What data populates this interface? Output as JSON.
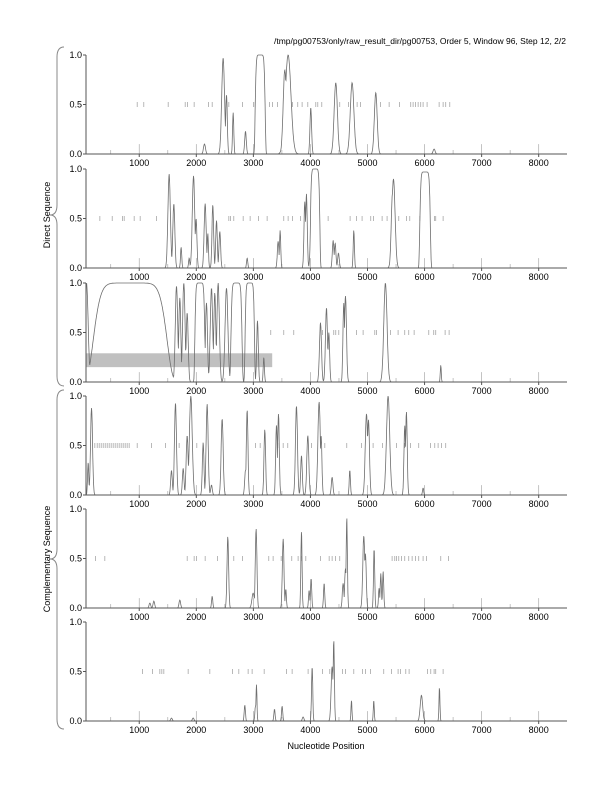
{
  "chart_data": {
    "type": "line",
    "title": "/tmp/pg00753/only/raw_result_dir/pg00753, Order 5, Window 96, Step 12, 2/2",
    "xlabel": "Nucleotide Position",
    "group_labels": [
      "Direct Sequence",
      "Complementary Sequence"
    ],
    "xlim": [
      67,
      8496
    ],
    "ylim": [
      0,
      1
    ],
    "x_ticks": [
      "1000",
      "2000",
      "3000",
      "4000",
      "5000",
      "6000",
      "7000",
      "8000"
    ],
    "x_tick_values": [
      1000,
      2000,
      3000,
      4000,
      5000,
      6000,
      7000,
      8000
    ],
    "y_ticks": [
      "0.0",
      "0.5",
      "1.0"
    ],
    "y_tick_values": [
      0,
      0.5,
      1
    ],
    "colors": {
      "curve": "#6e6e6e",
      "stop_tick": "#9a9a9a",
      "highlight": "#c0c0c0",
      "axis": "#555555"
    },
    "panels": [
      {
        "group": "Direct Sequence",
        "frame": 1,
        "peaks": [
          [
            2143,
            0.1,
            25
          ],
          [
            2470,
            0.97,
            35
          ],
          [
            2529,
            0.6,
            20
          ],
          [
            2646,
            0.42,
            15
          ],
          [
            2862,
            0.23,
            20
          ],
          [
            3119,
            1.0,
            90
          ],
          [
            3551,
            0.85,
            40
          ],
          [
            3609,
            1.0,
            70
          ],
          [
            4006,
            0.47,
            20
          ],
          [
            4444,
            0.72,
            40
          ],
          [
            4730,
            0.72,
            45
          ],
          [
            5145,
            0.62,
            35
          ],
          [
            6167,
            0.05,
            25
          ]
        ],
        "stop_codons": [
          964,
          1080,
          1507,
          1805,
          1845,
          1962,
          2213,
          2278,
          2570,
          2809,
          3002,
          3031,
          3282,
          3335,
          3422,
          3685,
          3778,
          3854,
          3954,
          4094,
          4129,
          4199,
          4514,
          4666,
          4818,
          4876,
          5227,
          5379,
          5560,
          5758,
          5799,
          5840,
          5887,
          5933,
          5974,
          6044,
          6255,
          6325,
          6371,
          6442
        ]
      },
      {
        "group": "Direct Sequence",
        "frame": 2,
        "peaks": [
          [
            1524,
            0.95,
            30
          ],
          [
            1606,
            0.65,
            25
          ],
          [
            1734,
            0.21,
            15
          ],
          [
            1875,
            0.1,
            15
          ],
          [
            1951,
            0.93,
            30
          ],
          [
            1997,
            0.5,
            20
          ],
          [
            2155,
            0.65,
            25
          ],
          [
            2202,
            0.35,
            15
          ],
          [
            2289,
            0.64,
            20
          ],
          [
            2354,
            0.48,
            20
          ],
          [
            2412,
            0.37,
            20
          ],
          [
            2891,
            0.1,
            15
          ],
          [
            3434,
            0.27,
            20
          ],
          [
            3469,
            0.38,
            15
          ],
          [
            3901,
            0.67,
            20
          ],
          [
            3930,
            0.75,
            20
          ],
          [
            4006,
            0.33,
            20
          ],
          [
            4082,
            1.0,
            85
          ],
          [
            4398,
            0.28,
            20
          ],
          [
            4433,
            0.25,
            20
          ],
          [
            4491,
            0.15,
            20
          ],
          [
            4760,
            0.38,
            15
          ],
          [
            5437,
            0.75,
            30
          ],
          [
            5455,
            0.9,
            40
          ],
          [
            6009,
            0.97,
            95
          ]
        ],
        "stop_codons": [
          310,
          526,
          707,
          736,
          911,
          1016,
          1302,
          2570,
          2599,
          2657,
          2821,
          2943,
          3089,
          3241,
          3533,
          3609,
          3685,
          3825,
          4310,
          4695,
          4806,
          4905,
          5057,
          5104,
          5256,
          5343,
          5548,
          5682,
          5741,
          5916,
          6173,
          6196,
          6325
        ]
      },
      {
        "group": "Direct Sequence",
        "frame": 3,
        "highlight": {
          "x_start": 70,
          "x_end": 3330,
          "y_low": 0.15,
          "y_high": 0.29
        },
        "peaks": [
          [
            76,
            1.0,
            40
          ],
          [
            841,
            1.0,
            660
          ],
          [
            1653,
            0.97,
            30
          ],
          [
            1711,
            0.85,
            25
          ],
          [
            1781,
            1.0,
            30
          ],
          [
            1840,
            0.7,
            25
          ],
          [
            2062,
            1.0,
            90
          ],
          [
            2178,
            0.8,
            25
          ],
          [
            2266,
            0.95,
            30
          ],
          [
            2324,
            0.9,
            25
          ],
          [
            2383,
            1.0,
            30
          ],
          [
            2529,
            0.95,
            35
          ],
          [
            2704,
            1.0,
            100
          ],
          [
            2937,
            1.0,
            85
          ],
          [
            3072,
            0.62,
            20
          ],
          [
            3183,
            0.25,
            15
          ],
          [
            4176,
            0.6,
            25
          ],
          [
            4281,
            0.75,
            25
          ],
          [
            4322,
            0.5,
            20
          ],
          [
            4584,
            0.8,
            20
          ],
          [
            4614,
            0.87,
            25
          ],
          [
            5314,
            1.0,
            40
          ],
          [
            6284,
            0.17,
            12
          ]
        ],
        "stop_codons": [
          3305,
          3533,
          3708,
          4211,
          4409,
          4444,
          4497,
          4806,
          4923,
          5128,
          5157,
          5402,
          5536,
          5653,
          5723,
          5817,
          6074,
          6161,
          6196,
          6360,
          6430
        ]
      },
      {
        "group": "Complementary Sequence",
        "frame": 4,
        "peaks": [
          [
            105,
            0.33,
            15
          ],
          [
            164,
            0.88,
            25
          ],
          [
            1565,
            0.25,
            20
          ],
          [
            1635,
            0.93,
            25
          ],
          [
            1770,
            0.27,
            20
          ],
          [
            1840,
            0.6,
            25
          ],
          [
            1904,
            1.0,
            35
          ],
          [
            2120,
            0.53,
            20
          ],
          [
            2190,
            0.92,
            25
          ],
          [
            2266,
            0.1,
            20
          ],
          [
            2453,
            0.77,
            25
          ],
          [
            2862,
            0.25,
            20
          ],
          [
            2891,
            0.86,
            20
          ],
          [
            3200,
            0.66,
            20
          ],
          [
            3405,
            0.71,
            20
          ],
          [
            3440,
            0.82,
            20
          ],
          [
            3755,
            0.9,
            25
          ],
          [
            3843,
            0.4,
            20
          ],
          [
            3954,
            0.6,
            25
          ],
          [
            4152,
            0.94,
            30
          ],
          [
            4187,
            0.6,
            20
          ],
          [
            4380,
            0.18,
            20
          ],
          [
            4690,
            0.25,
            15
          ],
          [
            4982,
            0.82,
            30
          ],
          [
            5017,
            0.76,
            25
          ],
          [
            5361,
            1.0,
            40
          ],
          [
            5653,
            0.7,
            20
          ],
          [
            5682,
            0.84,
            20
          ],
          [
            5974,
            0.07,
            15
          ]
        ],
        "stop_codons": [
          222,
          263,
          298,
          333,
          368,
          403,
          438,
          473,
          508,
          543,
          578,
          613,
          648,
          683,
          718,
          753,
          788,
          823,
          964,
          1215,
          1460,
          1699,
          2009,
          3037,
          3119,
          3428,
          3522,
          3603,
          4018,
          4252,
          4637,
          4894,
          5098,
          5262,
          5507,
          5653,
          5752,
          5898,
          6103,
          6179,
          6237,
          6296,
          6371
        ]
      },
      {
        "group": "Complementary Sequence",
        "frame": 5,
        "peaks": [
          [
            1186,
            0.05,
            20
          ],
          [
            1256,
            0.07,
            20
          ],
          [
            1711,
            0.08,
            20
          ],
          [
            2278,
            0.12,
            15
          ],
          [
            2552,
            0.72,
            20
          ],
          [
            2996,
            0.15,
            30
          ],
          [
            3048,
            0.8,
            20
          ],
          [
            3522,
            0.7,
            20
          ],
          [
            3568,
            0.19,
            15
          ],
          [
            3843,
            0.78,
            15
          ],
          [
            3977,
            0.18,
            15
          ],
          [
            4012,
            0.3,
            15
          ],
          [
            4240,
            0.25,
            15
          ],
          [
            4573,
            0.25,
            20
          ],
          [
            4614,
            0.4,
            20
          ],
          [
            4637,
            0.92,
            15
          ],
          [
            4935,
            0.73,
            25
          ],
          [
            4964,
            0.55,
            20
          ],
          [
            5116,
            0.6,
            15
          ],
          [
            5203,
            0.2,
            15
          ],
          [
            5233,
            0.35,
            15
          ],
          [
            5274,
            0.37,
            15
          ]
        ],
        "stop_codons": [
          234,
          397,
          1840,
          1962,
          2003,
          2155,
          2371,
          2657,
          2809,
          3270,
          3346,
          3487,
          3673,
          3784,
          3837,
          3919,
          4176,
          4328,
          4380,
          4439,
          4514,
          5431,
          5478,
          5507,
          5548,
          5595,
          5653,
          5723,
          5782,
          5840,
          5898,
          5974,
          6033,
          6284,
          6418
        ]
      },
      {
        "group": "Complementary Sequence",
        "frame": 6,
        "peaks": [
          [
            1565,
            0.03,
            20
          ],
          [
            1945,
            0.03,
            20
          ],
          [
            2850,
            0.16,
            15
          ],
          [
            3037,
            0.15,
            15
          ],
          [
            3054,
            0.37,
            12
          ],
          [
            3370,
            0.12,
            15
          ],
          [
            3504,
            0.15,
            15
          ],
          [
            3872,
            0.04,
            20
          ],
          [
            4030,
            0.55,
            15
          ],
          [
            4380,
            0.55,
            25
          ],
          [
            4409,
            0.82,
            15
          ],
          [
            4719,
            0.21,
            12
          ],
          [
            5110,
            0.21,
            12
          ],
          [
            5945,
            0.26,
            30
          ],
          [
            6261,
            0.34,
            12
          ]
        ],
        "stop_codons": [
          1057,
          1232,
          1361,
          1396,
          1431,
          1857,
          2237,
          2634,
          2745,
          2908,
          2978,
          3189,
          3580,
          3679,
          3959,
          4211,
          4339,
          4561,
          4614,
          4760,
          4911,
          4964,
          5052,
          5285,
          5420,
          5536,
          5577,
          5671,
          5729,
          6050,
          6109,
          6167,
          6196,
          6325
        ]
      }
    ]
  }
}
